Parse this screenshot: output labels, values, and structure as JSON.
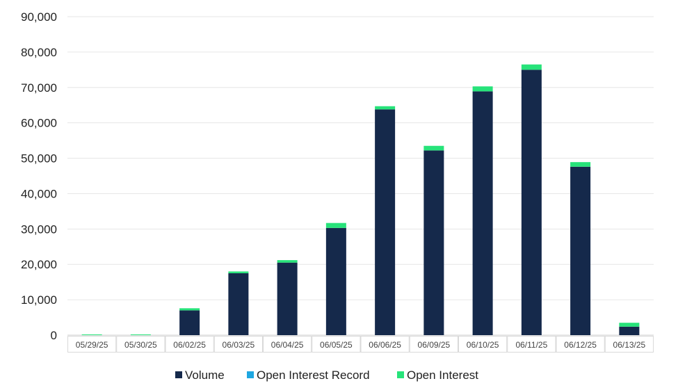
{
  "chart_data": {
    "type": "bar",
    "stacked": true,
    "categories": [
      "05/29/25",
      "05/30/25",
      "06/02/25",
      "06/03/25",
      "06/04/25",
      "06/05/25",
      "06/06/25",
      "06/09/25",
      "06/10/25",
      "06/11/25",
      "06/12/25",
      "06/13/25"
    ],
    "series": [
      {
        "name": "Volume",
        "color": "#15294b",
        "values": [
          0,
          0,
          7000,
          17500,
          20500,
          30300,
          63800,
          52200,
          68900,
          75000,
          47600,
          2400
        ]
      },
      {
        "name": "Open Interest Record",
        "color": "#1ea7e1",
        "values": [
          0,
          0,
          0,
          0,
          0,
          0,
          0,
          0,
          0,
          0,
          0,
          0
        ]
      },
      {
        "name": "Open Interest",
        "color": "#27e37a",
        "values": [
          200,
          200,
          600,
          500,
          700,
          1400,
          900,
          1300,
          1400,
          1500,
          1300,
          1100
        ]
      }
    ],
    "ylim": [
      0,
      90000
    ],
    "yticks": [
      0,
      10000,
      20000,
      30000,
      40000,
      50000,
      60000,
      70000,
      80000,
      90000
    ],
    "ytick_labels": [
      "0",
      "10,000",
      "20,000",
      "30,000",
      "40,000",
      "50,000",
      "60,000",
      "70,000",
      "80,000",
      "90,000"
    ],
    "grid": true,
    "legend_position": "bottom"
  }
}
